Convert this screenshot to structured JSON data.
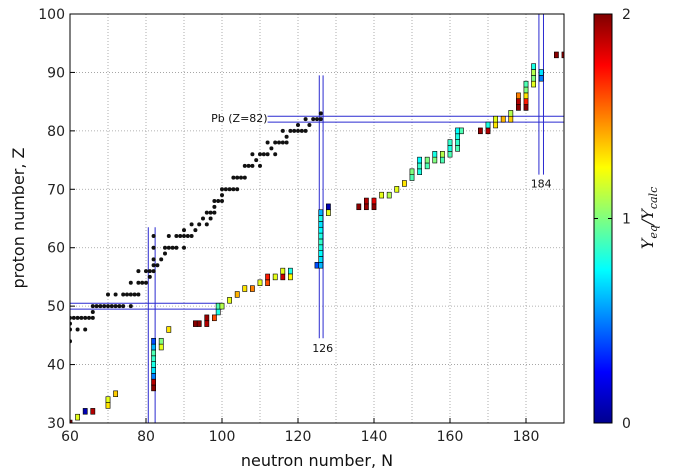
{
  "chart_data": {
    "type": "scatter",
    "xlabel": "neutron number, N",
    "ylabel": "proton number, Z",
    "xlim": [
      60,
      190
    ],
    "ylim": [
      30,
      100
    ],
    "xticks": [
      "60",
      "80",
      "100",
      "120",
      "140",
      "160",
      "180"
    ],
    "yticks": [
      "30",
      "40",
      "50",
      "60",
      "70",
      "80",
      "90",
      "100"
    ],
    "grid": true,
    "colorbar": {
      "label": "Y_eq/Y_calc",
      "range": [
        0,
        2
      ],
      "ticks": [
        "0",
        "1",
        "2"
      ],
      "colormap": "jet"
    },
    "annotations": [
      {
        "text": "Pb (Z=82)",
        "N": 112,
        "Z": 82.2
      },
      {
        "text": "126",
        "N": 126.5,
        "Z": 42.8
      },
      {
        "text": "184",
        "N": 184,
        "Z": 71
      }
    ],
    "guide_lines": {
      "magic_Z": [
        50,
        82
      ],
      "magic_N": [
        82,
        126,
        184
      ]
    },
    "stable_nuclei_color": "#111111",
    "stable_nuclei": [
      [
        60,
        44
      ],
      [
        60,
        46
      ],
      [
        60,
        47
      ],
      [
        60,
        48
      ],
      [
        61,
        48
      ],
      [
        62,
        46
      ],
      [
        62,
        48
      ],
      [
        63,
        48
      ],
      [
        64,
        46
      ],
      [
        64,
        48
      ],
      [
        65,
        48
      ],
      [
        66,
        48
      ],
      [
        66,
        49
      ],
      [
        66,
        50
      ],
      [
        67,
        50
      ],
      [
        68,
        50
      ],
      [
        69,
        50
      ],
      [
        70,
        50
      ],
      [
        70,
        52
      ],
      [
        71,
        50
      ],
      [
        72,
        50
      ],
      [
        72,
        52
      ],
      [
        73,
        50
      ],
      [
        74,
        50
      ],
      [
        74,
        52
      ],
      [
        75,
        52
      ],
      [
        76,
        50
      ],
      [
        76,
        52
      ],
      [
        76,
        54
      ],
      [
        77,
        52
      ],
      [
        78,
        52
      ],
      [
        78,
        54
      ],
      [
        78,
        56
      ],
      [
        79,
        54
      ],
      [
        80,
        54
      ],
      [
        80,
        56
      ],
      [
        81,
        55
      ],
      [
        81,
        56
      ],
      [
        82,
        56
      ],
      [
        82,
        57
      ],
      [
        82,
        58
      ],
      [
        82,
        60
      ],
      [
        82,
        62
      ],
      [
        83,
        57
      ],
      [
        84,
        58
      ],
      [
        85,
        59
      ],
      [
        85,
        60
      ],
      [
        86,
        60
      ],
      [
        86,
        62
      ],
      [
        87,
        60
      ],
      [
        88,
        60
      ],
      [
        88,
        62
      ],
      [
        89,
        62
      ],
      [
        90,
        60
      ],
      [
        90,
        62
      ],
      [
        90,
        63
      ],
      [
        91,
        62
      ],
      [
        92,
        62
      ],
      [
        92,
        64
      ],
      [
        93,
        63
      ],
      [
        94,
        64
      ],
      [
        95,
        65
      ],
      [
        96,
        64
      ],
      [
        96,
        66
      ],
      [
        97,
        65
      ],
      [
        97,
        66
      ],
      [
        98,
        66
      ],
      [
        98,
        67
      ],
      [
        98,
        68
      ],
      [
        99,
        68
      ],
      [
        100,
        68
      ],
      [
        100,
        69
      ],
      [
        100,
        70
      ],
      [
        101,
        70
      ],
      [
        102,
        70
      ],
      [
        103,
        70
      ],
      [
        103,
        72
      ],
      [
        104,
        70
      ],
      [
        104,
        72
      ],
      [
        105,
        72
      ],
      [
        106,
        72
      ],
      [
        106,
        74
      ],
      [
        107,
        74
      ],
      [
        108,
        74
      ],
      [
        108,
        76
      ],
      [
        109,
        75
      ],
      [
        110,
        74
      ],
      [
        110,
        76
      ],
      [
        111,
        76
      ],
      [
        112,
        76
      ],
      [
        112,
        78
      ],
      [
        113,
        77
      ],
      [
        114,
        76
      ],
      [
        114,
        78
      ],
      [
        115,
        78
      ],
      [
        116,
        78
      ],
      [
        116,
        80
      ],
      [
        117,
        78
      ],
      [
        117,
        79
      ],
      [
        118,
        80
      ],
      [
        119,
        80
      ],
      [
        120,
        80
      ],
      [
        120,
        81
      ],
      [
        121,
        80
      ],
      [
        122,
        80
      ],
      [
        122,
        82
      ],
      [
        123,
        81
      ],
      [
        124,
        82
      ],
      [
        125,
        82
      ],
      [
        126,
        82
      ],
      [
        126,
        83
      ]
    ],
    "boxes": [
      {
        "N": 60,
        "Z": 30,
        "value": 1.98
      },
      {
        "N": 62,
        "Z": 31,
        "value": 1.2
      },
      {
        "N": 64,
        "Z": 32,
        "value": 0.1
      },
      {
        "N": 66,
        "Z": 32,
        "value": 1.9
      },
      {
        "N": 70,
        "Z": 33,
        "value": 1.3
      },
      {
        "N": 70,
        "Z": 34,
        "value": 1.2
      },
      {
        "N": 72,
        "Z": 35,
        "value": 1.35
      },
      {
        "N": 82,
        "Z": 36,
        "value": 1.98
      },
      {
        "N": 82,
        "Z": 37,
        "value": 1.9
      },
      {
        "N": 82,
        "Z": 38,
        "value": 0.5
      },
      {
        "N": 82,
        "Z": 39,
        "value": 0.7
      },
      {
        "N": 82,
        "Z": 40,
        "value": 0.8
      },
      {
        "N": 82,
        "Z": 41,
        "value": 0.85
      },
      {
        "N": 82,
        "Z": 42,
        "value": 0.9
      },
      {
        "N": 82,
        "Z": 43,
        "value": 0.6
      },
      {
        "N": 82,
        "Z": 44,
        "value": 0.4
      },
      {
        "N": 84,
        "Z": 43,
        "value": 1.2
      },
      {
        "N": 84,
        "Z": 44,
        "value": 1.0
      },
      {
        "N": 86,
        "Z": 46,
        "value": 1.3
      },
      {
        "N": 93,
        "Z": 47,
        "value": 1.98
      },
      {
        "N": 94,
        "Z": 47,
        "value": 1.98
      },
      {
        "N": 96,
        "Z": 47,
        "value": 1.9
      },
      {
        "N": 96,
        "Z": 48,
        "value": 1.95
      },
      {
        "N": 98,
        "Z": 48,
        "value": 1.6
      },
      {
        "N": 99,
        "Z": 49,
        "value": 0.8
      },
      {
        "N": 99,
        "Z": 50,
        "value": 0.9
      },
      {
        "N": 100,
        "Z": 50,
        "value": 1.1
      },
      {
        "N": 102,
        "Z": 51,
        "value": 1.2
      },
      {
        "N": 104,
        "Z": 52,
        "value": 1.4
      },
      {
        "N": 106,
        "Z": 53,
        "value": 1.3
      },
      {
        "N": 108,
        "Z": 53,
        "value": 1.5
      },
      {
        "N": 110,
        "Z": 54,
        "value": 1.2
      },
      {
        "N": 112,
        "Z": 54,
        "value": 1.6
      },
      {
        "N": 112,
        "Z": 55,
        "value": 1.7
      },
      {
        "N": 114,
        "Z": 55,
        "value": 1.2
      },
      {
        "N": 116,
        "Z": 55,
        "value": 1.85
      },
      {
        "N": 116,
        "Z": 56,
        "value": 1.2
      },
      {
        "N": 118,
        "Z": 56,
        "value": 0.8
      },
      {
        "N": 118,
        "Z": 55,
        "value": 1.25
      },
      {
        "N": 125,
        "Z": 57,
        "value": 0.4
      },
      {
        "N": 126,
        "Z": 57,
        "value": 0.6
      },
      {
        "N": 126,
        "Z": 58,
        "value": 0.7
      },
      {
        "N": 126,
        "Z": 59,
        "value": 0.75
      },
      {
        "N": 126,
        "Z": 60,
        "value": 0.8
      },
      {
        "N": 126,
        "Z": 61,
        "value": 0.85
      },
      {
        "N": 126,
        "Z": 62,
        "value": 0.8
      },
      {
        "N": 126,
        "Z": 63,
        "value": 0.75
      },
      {
        "N": 126,
        "Z": 64,
        "value": 0.7
      },
      {
        "N": 126,
        "Z": 65,
        "value": 0.8
      },
      {
        "N": 126,
        "Z": 66,
        "value": 0.6
      },
      {
        "N": 128,
        "Z": 66,
        "value": 1.2
      },
      {
        "N": 128,
        "Z": 67,
        "value": 0.1
      },
      {
        "N": 136,
        "Z": 67,
        "value": 1.98
      },
      {
        "N": 138,
        "Z": 67,
        "value": 1.95
      },
      {
        "N": 138,
        "Z": 68,
        "value": 1.9
      },
      {
        "N": 140,
        "Z": 67,
        "value": 1.98
      },
      {
        "N": 140,
        "Z": 68,
        "value": 1.8
      },
      {
        "N": 142,
        "Z": 69,
        "value": 1.2
      },
      {
        "N": 144,
        "Z": 69,
        "value": 1.1
      },
      {
        "N": 146,
        "Z": 70,
        "value": 1.2
      },
      {
        "N": 148,
        "Z": 71,
        "value": 1.3
      },
      {
        "N": 150,
        "Z": 72,
        "value": 0.9
      },
      {
        "N": 150,
        "Z": 73,
        "value": 1.0
      },
      {
        "N": 152,
        "Z": 73,
        "value": 0.8
      },
      {
        "N": 152,
        "Z": 74,
        "value": 0.85
      },
      {
        "N": 152,
        "Z": 75,
        "value": 0.75
      },
      {
        "N": 154,
        "Z": 74,
        "value": 0.9
      },
      {
        "N": 154,
        "Z": 75,
        "value": 1.0
      },
      {
        "N": 156,
        "Z": 75,
        "value": 1.0
      },
      {
        "N": 156,
        "Z": 76,
        "value": 0.8
      },
      {
        "N": 158,
        "Z": 75,
        "value": 0.9
      },
      {
        "N": 158,
        "Z": 76,
        "value": 1.1
      },
      {
        "N": 160,
        "Z": 76,
        "value": 0.9
      },
      {
        "N": 160,
        "Z": 77,
        "value": 0.8
      },
      {
        "N": 160,
        "Z": 78,
        "value": 0.85
      },
      {
        "N": 162,
        "Z": 77,
        "value": 0.9
      },
      {
        "N": 162,
        "Z": 78,
        "value": 0.85
      },
      {
        "N": 162,
        "Z": 79,
        "value": 0.8
      },
      {
        "N": 162,
        "Z": 80,
        "value": 0.75
      },
      {
        "N": 163,
        "Z": 80,
        "value": 0.9
      },
      {
        "N": 168,
        "Z": 80,
        "value": 1.95
      },
      {
        "N": 170,
        "Z": 80,
        "value": 1.9
      },
      {
        "N": 170,
        "Z": 81,
        "value": 0.8
      },
      {
        "N": 172,
        "Z": 81,
        "value": 1.3
      },
      {
        "N": 172,
        "Z": 82,
        "value": 1.2
      },
      {
        "N": 174,
        "Z": 82,
        "value": 1.4
      },
      {
        "N": 176,
        "Z": 82,
        "value": 1.35
      },
      {
        "N": 176,
        "Z": 83,
        "value": 1.1
      },
      {
        "N": 178,
        "Z": 84,
        "value": 1.98
      },
      {
        "N": 178,
        "Z": 85,
        "value": 1.9
      },
      {
        "N": 178,
        "Z": 86,
        "value": 1.5
      },
      {
        "N": 180,
        "Z": 84,
        "value": 1.98
      },
      {
        "N": 180,
        "Z": 85,
        "value": 1.7
      },
      {
        "N": 180,
        "Z": 86,
        "value": 1.3
      },
      {
        "N": 180,
        "Z": 87,
        "value": 1.0
      },
      {
        "N": 180,
        "Z": 88,
        "value": 0.9
      },
      {
        "N": 182,
        "Z": 88,
        "value": 1.2
      },
      {
        "N": 182,
        "Z": 89,
        "value": 1.0
      },
      {
        "N": 182,
        "Z": 90,
        "value": 1.1
      },
      {
        "N": 182,
        "Z": 91,
        "value": 0.8
      },
      {
        "N": 184,
        "Z": 89,
        "value": 0.5
      },
      {
        "N": 184,
        "Z": 90,
        "value": 0.7
      },
      {
        "N": 188,
        "Z": 93,
        "value": 1.98
      },
      {
        "N": 190,
        "Z": 93,
        "value": 1.95
      }
    ]
  }
}
